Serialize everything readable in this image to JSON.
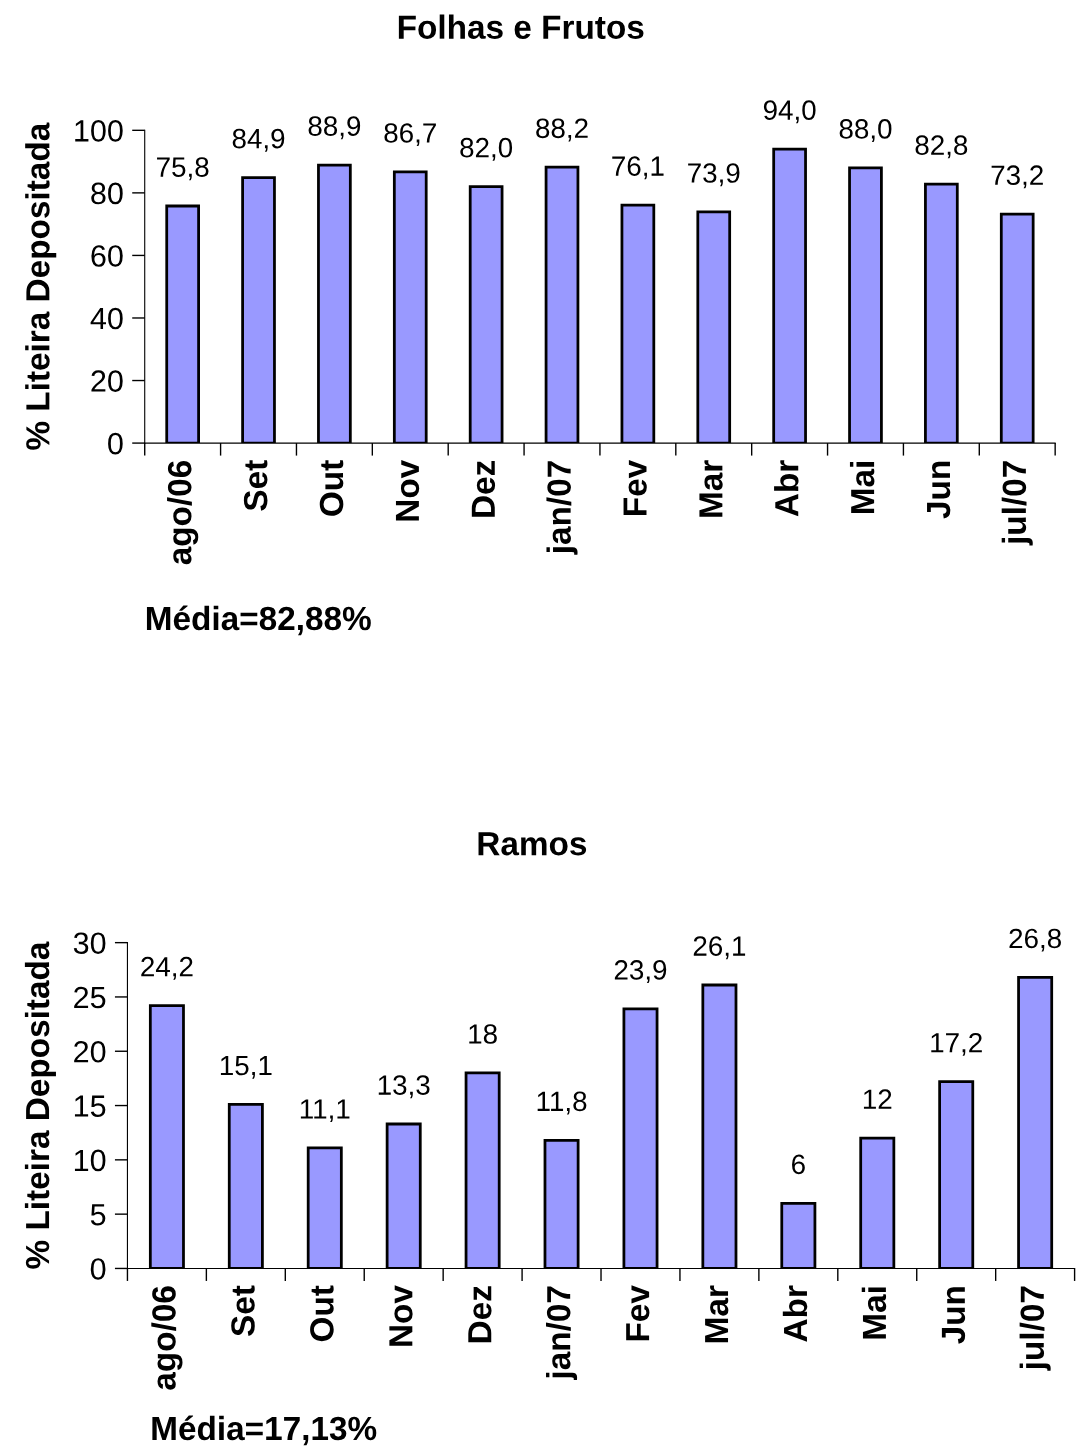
{
  "chart_data": [
    {
      "type": "bar",
      "title": "Folhas e Frutos",
      "ylabel": "% Liteira Depositada",
      "categories": [
        "ago/06",
        "Set",
        "Out",
        "Nov",
        "Dez",
        "jan/07",
        "Fev",
        "Mar",
        "Abr",
        "Mai",
        "Jun",
        "jul/07"
      ],
      "values": [
        75.8,
        84.9,
        88.9,
        86.7,
        82.0,
        88.2,
        76.1,
        73.9,
        94.0,
        88.0,
        82.8,
        73.2
      ],
      "value_labels": [
        "75,8",
        "84,9",
        "88,9",
        "86,7",
        "82,0",
        "88,2",
        "76,1",
        "73,9",
        "94,0",
        "88,0",
        "82,8",
        "73,2"
      ],
      "color": "#9999ff",
      "ylim": [
        0,
        100
      ],
      "yticks": [
        0,
        20,
        40,
        60,
        80,
        100
      ],
      "annotations": [
        "Média=82,88%"
      ]
    },
    {
      "type": "bar",
      "title": "Ramos",
      "ylabel": "% Liteira Depositada",
      "categories": [
        "ago/06",
        "Set",
        "Out",
        "Nov",
        "Dez",
        "jan/07",
        "Fev",
        "Mar",
        "Abr",
        "Mai",
        "Jun",
        "jul/07"
      ],
      "values": [
        24.2,
        15.1,
        11.1,
        13.3,
        18,
        11.8,
        23.9,
        26.1,
        6,
        12,
        17.2,
        26.8
      ],
      "value_labels": [
        "24,2",
        "15,1",
        "11,1",
        "13,3",
        "18",
        "11,8",
        "23,9",
        "26,1",
        "6",
        "12",
        "17,2",
        "26,8"
      ],
      "color": "#9999ff",
      "ylim": [
        0,
        30
      ],
      "yticks": [
        0,
        5,
        10,
        15,
        20,
        25,
        30
      ],
      "annotations": [
        "Média=17,13%"
      ]
    }
  ]
}
